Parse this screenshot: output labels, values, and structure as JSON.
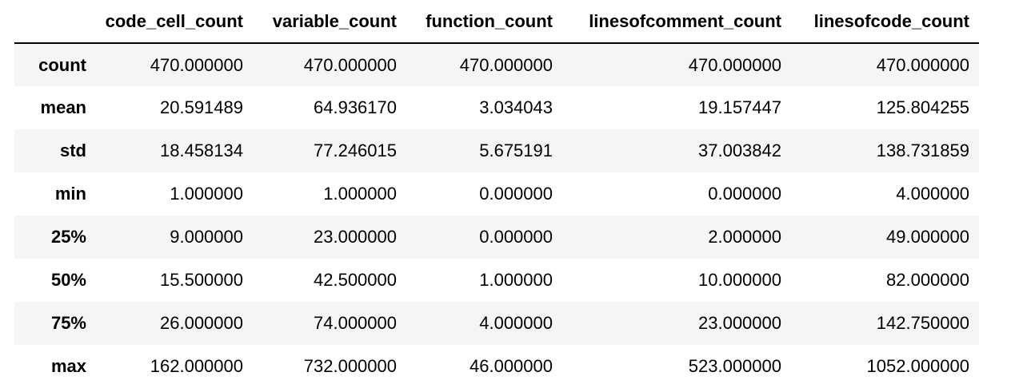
{
  "table": {
    "index_header": "",
    "columns": [
      "code_cell_count",
      "variable_count",
      "function_count",
      "linesofcomment_count",
      "linesofcode_count"
    ],
    "rows": [
      {
        "label": "count",
        "values": [
          "470.000000",
          "470.000000",
          "470.000000",
          "470.000000",
          "470.000000"
        ]
      },
      {
        "label": "mean",
        "values": [
          "20.591489",
          "64.936170",
          "3.034043",
          "19.157447",
          "125.804255"
        ]
      },
      {
        "label": "std",
        "values": [
          "18.458134",
          "77.246015",
          "5.675191",
          "37.003842",
          "138.731859"
        ]
      },
      {
        "label": "min",
        "values": [
          "1.000000",
          "1.000000",
          "0.000000",
          "0.000000",
          "4.000000"
        ]
      },
      {
        "label": "25%",
        "values": [
          "9.000000",
          "23.000000",
          "0.000000",
          "2.000000",
          "49.000000"
        ]
      },
      {
        "label": "50%",
        "values": [
          "15.500000",
          "42.500000",
          "1.000000",
          "10.000000",
          "82.000000"
        ]
      },
      {
        "label": "75%",
        "values": [
          "26.000000",
          "74.000000",
          "4.000000",
          "23.000000",
          "142.750000"
        ]
      },
      {
        "label": "max",
        "values": [
          "162.000000",
          "732.000000",
          "46.000000",
          "523.000000",
          "1052.000000"
        ]
      }
    ]
  },
  "colors": {
    "stripe": "#f5f5f5",
    "header_rule": "#000000",
    "text": "#000000",
    "background": "#ffffff"
  }
}
